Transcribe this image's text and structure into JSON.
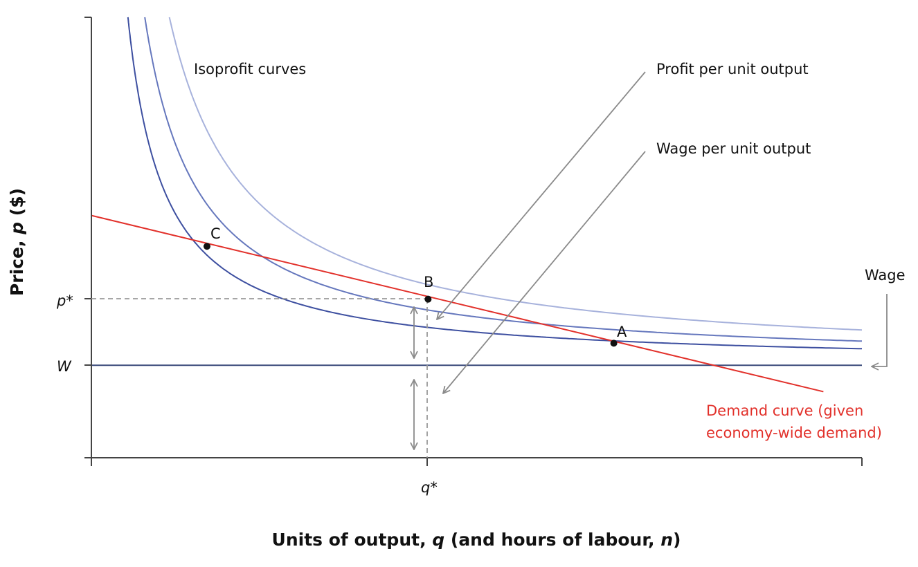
{
  "chart_data": {
    "type": "line",
    "title": "",
    "xlabel": {
      "pre": "Units of output, ",
      "q": "q",
      "mid": " (and hours of labour, ",
      "n": "n",
      "post": ")"
    },
    "ylabel": {
      "pre": "Price, ",
      "p": "p",
      "post": " ($)"
    },
    "xlim": [
      0,
      100
    ],
    "ylim": [
      0,
      100
    ],
    "grid": false,
    "ticks": {
      "p_star": {
        "label": "p*",
        "value": 36
      },
      "w": {
        "label": "W",
        "value": 21
      },
      "q_star": {
        "label": "q*",
        "value": 43.7
      }
    },
    "isoprofit_curves": {
      "label": "Isoprofit curves",
      "series": [
        {
          "k": 375,
          "color": "#3d4fa0"
        },
        {
          "k": 548,
          "color": "#6577bd"
        },
        {
          "k": 800,
          "color": "#a7b2dc"
        }
      ]
    },
    "wage_line": {
      "value": 21,
      "color": "#3a4a7a"
    },
    "demand_curve": {
      "label_lines": [
        "Demand curve (given",
        "economy-wide demand)"
      ],
      "points": [
        [
          0,
          55
        ],
        [
          95,
          15
        ]
      ],
      "color": "#e2312b"
    },
    "points": [
      {
        "label": "C",
        "x": 15,
        "y": 48
      },
      {
        "label": "B",
        "x": 43.7,
        "y": 36
      },
      {
        "label": "A",
        "x": 67.8,
        "y": 26
      }
    ],
    "annotations": {
      "profit": "Profit per unit output",
      "wage_per_unit": "Wage per unit output",
      "wage": "Wage"
    }
  }
}
